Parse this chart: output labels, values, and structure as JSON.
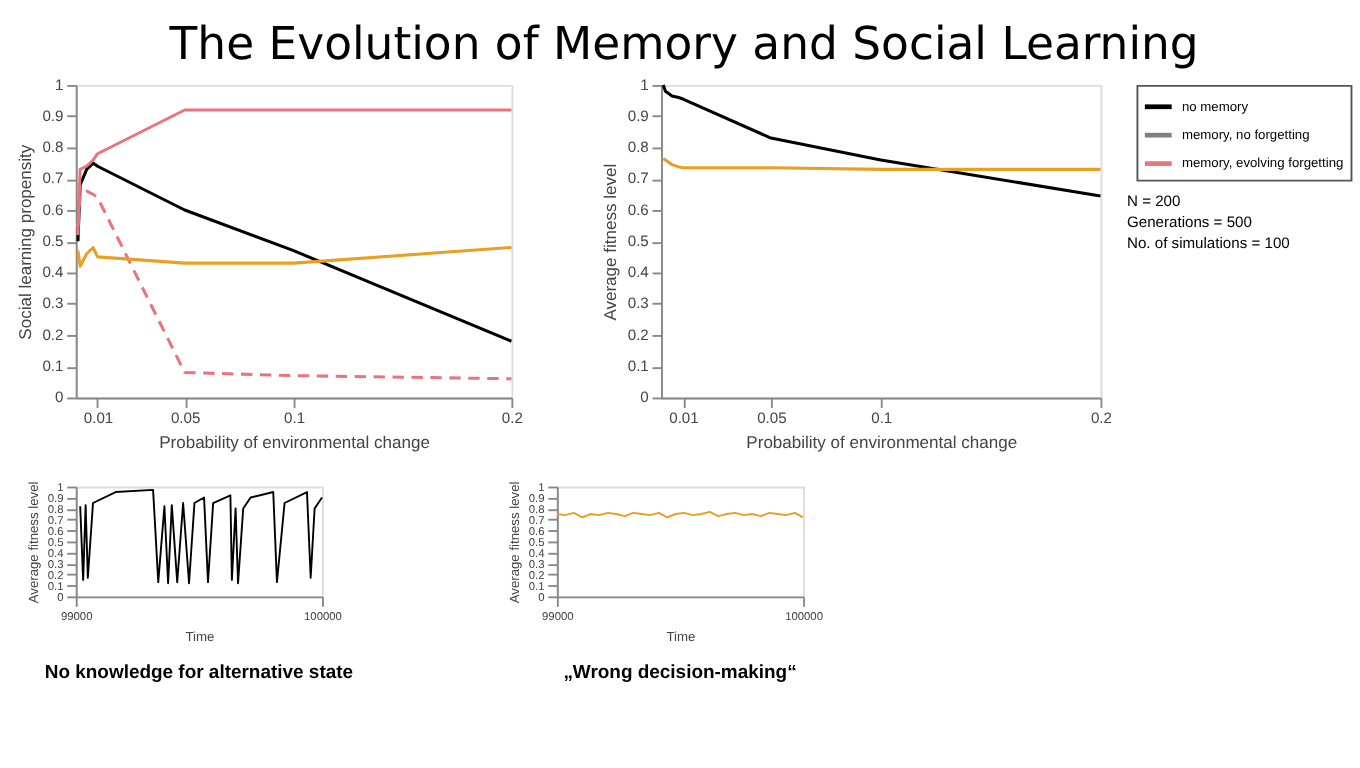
{
  "chart_data": [
    {
      "type": "line",
      "title": "The Evolution of Memory and Social Learning",
      "xlabel": "Probability of environmental change",
      "ylabel": "Social learning propensity",
      "xlim": [
        0,
        0.2
      ],
      "xticks": [
        0.01,
        0.05,
        0.1,
        0.2
      ],
      "ylim": [
        0,
        1
      ],
      "yticks": [
        0,
        0.1,
        0.2,
        0.3,
        0.4,
        0.5,
        0.6,
        0.7,
        0.8,
        0.9,
        1
      ],
      "grid": false,
      "legend": false,
      "marker": "none",
      "x": [
        0.001,
        0.002,
        0.005,
        0.008,
        0.01,
        0.05,
        0.1,
        0.2
      ],
      "series": [
        {
          "color": "#000000",
          "values": [
            0.5,
            0.68,
            0.73,
            0.75,
            0.74,
            0.6,
            0.47,
            0.18
          ]
        },
        {
          "color": "#e8747e",
          "values": [
            0.52,
            0.73,
            0.74,
            0.76,
            0.78,
            0.92,
            0.92,
            0.92
          ]
        },
        {
          "color": "#e8747e",
          "line_style": "dashed",
          "values": [
            0.55,
            0.65,
            0.66,
            0.65,
            0.64,
            0.08,
            0.07,
            0.06
          ]
        },
        {
          "color": "#e8a020",
          "values": [
            0.47,
            0.42,
            0.46,
            0.48,
            0.45,
            0.43,
            0.43,
            0.48
          ]
        }
      ]
    },
    {
      "type": "line",
      "xlabel": "Probability of environmental change",
      "ylabel": "Average fitness level",
      "xlim": [
        0,
        0.2
      ],
      "xticks": [
        0.01,
        0.05,
        0.1,
        0.2
      ],
      "ylim": [
        0,
        1
      ],
      "yticks": [
        0,
        0.1,
        0.2,
        0.3,
        0.4,
        0.5,
        0.6,
        0.7,
        0.8,
        0.9,
        1
      ],
      "grid": false,
      "legend": "top right",
      "marker": "none",
      "annotations": [
        "N = 200",
        "Generations = 500",
        "No. of simulations = 100"
      ],
      "x": [
        0.001,
        0.002,
        0.005,
        0.008,
        0.01,
        0.05,
        0.1,
        0.2
      ],
      "series": [
        {
          "name": "no memory",
          "color": "#000000",
          "values": [
            1.0,
            0.98,
            0.965,
            0.96,
            0.955,
            0.83,
            0.76,
            0.645
          ]
        },
        {
          "name": "memory, no forgetting",
          "color": "#808080",
          "values": [
            null,
            null,
            null,
            null,
            null,
            null,
            null,
            null
          ]
        },
        {
          "name": "memory, evolving forgetting",
          "color": "#e8747e",
          "values": [
            null,
            null,
            null,
            null,
            null,
            null,
            null,
            null
          ]
        },
        {
          "color": "#e8a020",
          "values": [
            0.765,
            0.76,
            0.745,
            0.738,
            0.735,
            0.735,
            0.73,
            0.73
          ]
        }
      ]
    },
    {
      "type": "line",
      "xlabel": "Time",
      "ylabel": "Average fitness level",
      "xlim": [
        99000,
        100000
      ],
      "xticks": [
        99000,
        100000
      ],
      "ylim": [
        0,
        1
      ],
      "yticks": [
        0,
        0.1,
        0.2,
        0.3,
        0.4,
        0.5,
        0.6,
        0.7,
        0.8,
        0.9,
        1
      ],
      "grid": false,
      "legend": false,
      "marker": "none",
      "annotations": [
        "No knowledge for alternative state"
      ],
      "x": [
        99018,
        99030,
        99040,
        99049,
        99070,
        99162,
        99314,
        99335,
        99360,
        99375,
        99390,
        99412,
        99436,
        99460,
        99482,
        99521,
        99537,
        99558,
        99628,
        99634,
        99649,
        99659,
        99680,
        99710,
        99802,
        99817,
        99848,
        99939,
        99954,
        99970,
        100000
      ],
      "series": [
        {
          "color": "#000000",
          "values": [
            0.82,
            0.15,
            0.83,
            0.17,
            0.85,
            0.95,
            0.97,
            0.13,
            0.82,
            0.12,
            0.83,
            0.13,
            0.85,
            0.12,
            0.85,
            0.9,
            0.13,
            0.85,
            0.92,
            0.15,
            0.8,
            0.12,
            0.8,
            0.9,
            0.95,
            0.13,
            0.85,
            0.95,
            0.17,
            0.8,
            0.9
          ]
        }
      ]
    },
    {
      "type": "line",
      "xlabel": "Time",
      "ylabel": "Average fitness level",
      "xlim": [
        99000,
        100000
      ],
      "xticks": [
        99000,
        100000
      ],
      "ylim": [
        0,
        1
      ],
      "yticks": [
        0,
        0.1,
        0.2,
        0.3,
        0.4,
        0.5,
        0.6,
        0.7,
        0.8,
        0.9,
        1
      ],
      "grid": false,
      "legend": false,
      "marker": "none",
      "annotations": [
        "„Wrong decision-making“"
      ],
      "x": [
        99000,
        99034,
        99069,
        99103,
        99138,
        99172,
        99207,
        99241,
        99276,
        99310,
        99345,
        99379,
        99414,
        99448,
        99483,
        99517,
        99552,
        99586,
        99621,
        99655,
        99690,
        99724,
        99759,
        99793,
        99828,
        99862,
        99897,
        99931,
        99966,
        100000
      ],
      "series": [
        {
          "color": "#e8a020",
          "values": [
            0.75,
            0.74,
            0.76,
            0.72,
            0.75,
            0.74,
            0.76,
            0.75,
            0.73,
            0.76,
            0.75,
            0.74,
            0.76,
            0.72,
            0.75,
            0.76,
            0.74,
            0.75,
            0.77,
            0.73,
            0.75,
            0.76,
            0.74,
            0.75,
            0.73,
            0.76,
            0.75,
            0.74,
            0.76,
            0.72
          ]
        }
      ]
    }
  ]
}
